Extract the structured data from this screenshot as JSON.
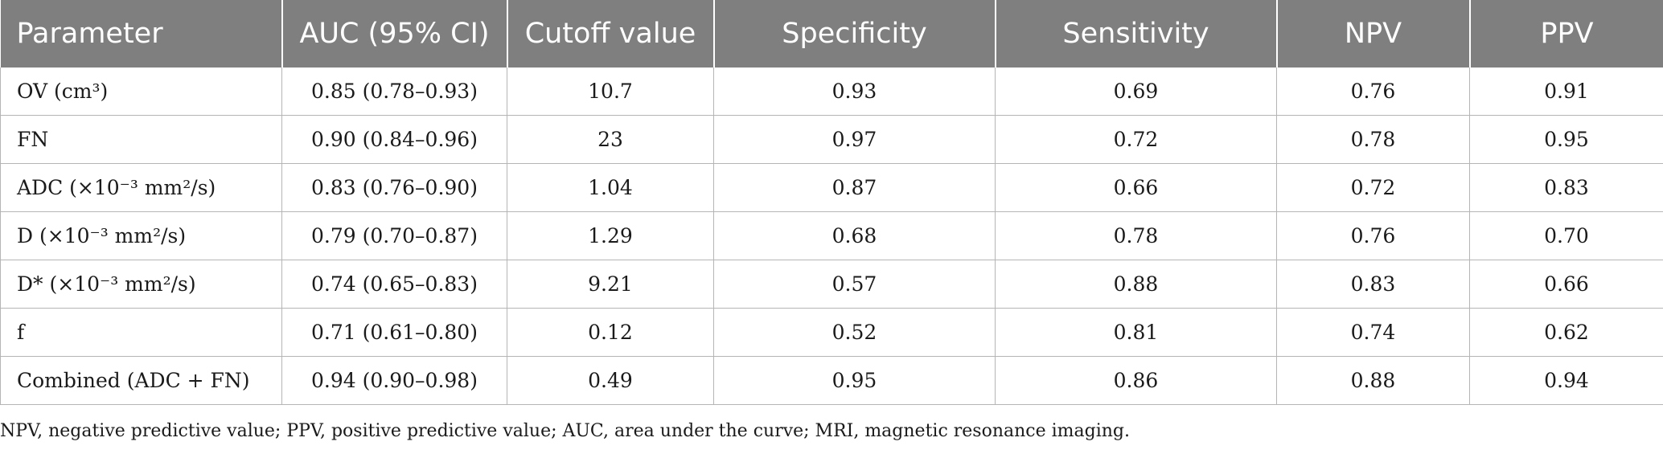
{
  "table": {
    "headers": [
      "Parameter",
      "AUC (95% CI)",
      "Cutoff value",
      "Specificity",
      "Sensitivity",
      "NPV",
      "PPV"
    ],
    "rows": [
      [
        "OV (cm³)",
        "0.85 (0.78–0.93)",
        "10.7",
        "0.93",
        "0.69",
        "0.76",
        "0.91"
      ],
      [
        "FN",
        "0.90 (0.84–0.96)",
        "23",
        "0.97",
        "0.72",
        "0.78",
        "0.95"
      ],
      [
        "ADC (×10⁻³ mm²/s)",
        "0.83 (0.76–0.90)",
        "1.04",
        "0.87",
        "0.66",
        "0.72",
        "0.83"
      ],
      [
        "D (×10⁻³ mm²/s)",
        "0.79 (0.70–0.87)",
        "1.29",
        "0.68",
        "0.78",
        "0.76",
        "0.70"
      ],
      [
        "D* (×10⁻³ mm²/s)",
        "0.74 (0.65–0.83)",
        "9.21",
        "0.57",
        "0.88",
        "0.83",
        "0.66"
      ],
      [
        "f",
        "0.71 (0.61–0.80)",
        "0.12",
        "0.52",
        "0.81",
        "0.74",
        "0.62"
      ],
      [
        "Combined (ADC + FN)",
        "0.94 (0.90–0.98)",
        "0.49",
        "0.95",
        "0.86",
        "0.88",
        "0.94"
      ]
    ]
  },
  "footnote": "NPV, negative predictive value; PPV, positive predictive value; AUC, area under the curve; MRI, magnetic resonance imaging."
}
